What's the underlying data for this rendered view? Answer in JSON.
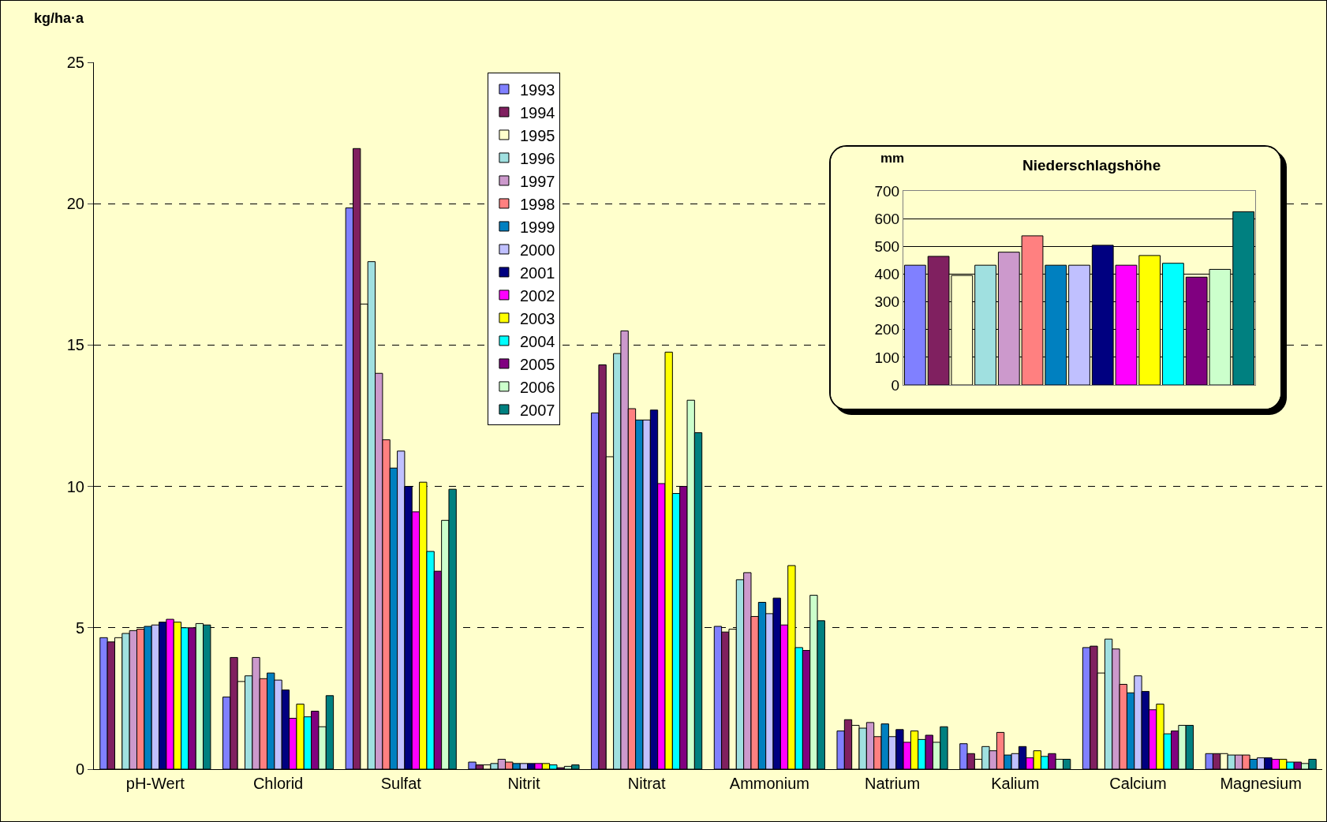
{
  "chart_data": [
    {
      "type": "bar",
      "ylabel": "kg/ha·a",
      "categories": [
        "pH-Wert",
        "Chlorid",
        "Sulfat",
        "Nitrit",
        "Nitrat",
        "Ammonium",
        "Natrium",
        "Kalium",
        "Calcium",
        "Magnesium"
      ],
      "ylim": [
        0,
        25
      ],
      "yticks": [
        0,
        5,
        10,
        15,
        20,
        25
      ],
      "grid": "y",
      "legend": "top",
      "series": [
        {
          "name": "1993",
          "color": "#8080ff",
          "values": [
            4.65,
            2.55,
            19.85,
            0.25,
            12.6,
            5.05,
            1.35,
            0.9,
            4.3,
            0.55
          ]
        },
        {
          "name": "1994",
          "color": "#802060",
          "values": [
            4.5,
            3.95,
            21.95,
            0.15,
            14.3,
            4.85,
            1.75,
            0.55,
            4.35,
            0.55
          ]
        },
        {
          "name": "1995",
          "color": "#ffffcc",
          "values": [
            4.65,
            3.1,
            16.45,
            0.15,
            11.05,
            4.95,
            1.55,
            0.35,
            3.4,
            0.55
          ]
        },
        {
          "name": "1996",
          "color": "#a0e0e0",
          "values": [
            4.8,
            3.3,
            17.95,
            0.2,
            14.7,
            6.7,
            1.45,
            0.8,
            4.6,
            0.5
          ]
        },
        {
          "name": "1997",
          "color": "#cc99cc",
          "values": [
            4.9,
            3.95,
            14.0,
            0.35,
            15.5,
            6.95,
            1.65,
            0.65,
            4.25,
            0.5
          ]
        },
        {
          "name": "1998",
          "color": "#ff8080",
          "values": [
            4.95,
            3.2,
            11.65,
            0.25,
            12.75,
            5.4,
            1.15,
            1.3,
            3.0,
            0.5
          ]
        },
        {
          "name": "1999",
          "color": "#0080c0",
          "values": [
            5.05,
            3.4,
            10.65,
            0.2,
            12.35,
            5.9,
            1.6,
            0.5,
            2.7,
            0.35
          ]
        },
        {
          "name": "2000",
          "color": "#c0c0ff",
          "values": [
            5.1,
            3.15,
            11.25,
            0.2,
            12.35,
            5.5,
            1.15,
            0.55,
            3.3,
            0.4
          ]
        },
        {
          "name": "2001",
          "color": "#000080",
          "values": [
            5.2,
            2.8,
            10.0,
            0.2,
            12.7,
            6.05,
            1.4,
            0.8,
            2.75,
            0.4
          ]
        },
        {
          "name": "2002",
          "color": "#ff00ff",
          "values": [
            5.3,
            1.8,
            9.1,
            0.2,
            10.1,
            5.1,
            0.95,
            0.4,
            2.1,
            0.35
          ]
        },
        {
          "name": "2003",
          "color": "#ffff00",
          "values": [
            5.2,
            2.3,
            10.15,
            0.2,
            14.75,
            7.2,
            1.35,
            0.65,
            2.3,
            0.35
          ]
        },
        {
          "name": "2004",
          "color": "#00ffff",
          "values": [
            5.0,
            1.85,
            7.7,
            0.15,
            9.75,
            4.3,
            1.05,
            0.45,
            1.25,
            0.25
          ]
        },
        {
          "name": "2005",
          "color": "#800080",
          "values": [
            5.0,
            2.05,
            7.0,
            0.05,
            10.0,
            4.2,
            1.2,
            0.55,
            1.35,
            0.25
          ]
        },
        {
          "name": "2006",
          "color": "#ccffcc",
          "values": [
            5.15,
            1.5,
            8.8,
            0.1,
            13.05,
            6.15,
            0.95,
            0.35,
            1.55,
            0.2
          ]
        },
        {
          "name": "2007",
          "color": "#008080",
          "values": [
            5.1,
            2.6,
            9.9,
            0.15,
            11.9,
            5.25,
            1.5,
            0.35,
            1.55,
            0.35
          ]
        }
      ]
    },
    {
      "type": "bar",
      "title": "Niederschlagshöhe",
      "ylabel": "mm",
      "categories": [
        null,
        null,
        null,
        null,
        null,
        null,
        null,
        null,
        null,
        null,
        null,
        null,
        null,
        null,
        null
      ],
      "ylim": [
        0,
        700
      ],
      "yticks": [
        0,
        100,
        200,
        300,
        400,
        500,
        600,
        700
      ],
      "grid": "y",
      "values": [
        432,
        464,
        395,
        432,
        479,
        538,
        432,
        432,
        504,
        432,
        467,
        439,
        389,
        417,
        625
      ],
      "colors": [
        "#8080ff",
        "#802060",
        "#ffffcc",
        "#a0e0e0",
        "#cc99cc",
        "#ff8080",
        "#0080c0",
        "#c0c0ff",
        "#000080",
        "#ff00ff",
        "#ffff00",
        "#00ffff",
        "#800080",
        "#ccffcc",
        "#008080"
      ]
    }
  ]
}
